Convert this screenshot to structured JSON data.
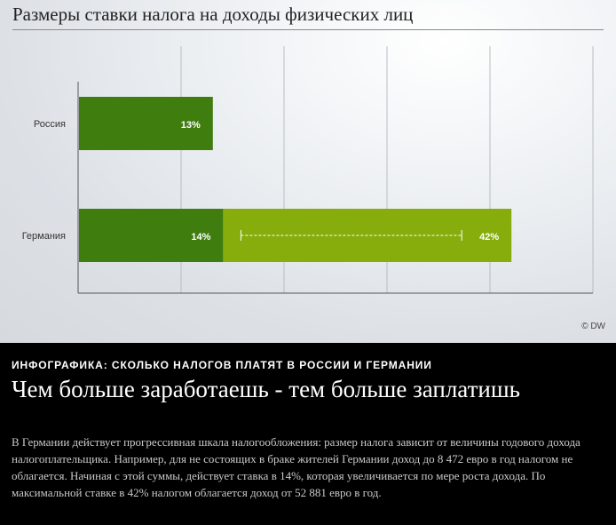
{
  "chart_data": {
    "type": "bar",
    "title": "Размеры ставки налога на доходы физических лиц",
    "orientation": "horizontal",
    "categories": [
      "Россия",
      "Германия"
    ],
    "xlim": [
      0,
      50
    ],
    "series": [
      {
        "values": [
          13,
          14
        ],
        "labels": [
          "13%",
          "14%"
        ],
        "color": "#3f7d0e"
      },
      {
        "values": [
          0,
          28
        ],
        "labels": [
          "",
          "42%"
        ],
        "color": "#86ad0b"
      }
    ],
    "annotation": "progressive range from 14% to 42% (dashed line)",
    "grid": "vertical",
    "credit": "© DW"
  },
  "caption": {
    "kicker": "ИНФОГРАФИКА: СКОЛЬКО НАЛОГОВ ПЛАТЯТ В РОССИИ И ГЕРМАНИИ",
    "headline": "Чем больше заработаешь - тем больше заплатишь",
    "body": "В Германии действует прогрессивная шкала налогообложения: размер налога зависит от величины годового дохода налогоплательщика. Например, для не состоящих в браке жителей Германии доход до 8 472 евро в год налогом не облагается. Начиная с этой суммы, действует ставка в 14%, которая увеличивается по мере роста дохода. По максимальной ставке в 42% налогом облагается доход от 52 881 евро в год."
  },
  "colors": {
    "flat_rate": "#3f7d0e",
    "progressive_rate": "#86ad0b",
    "caption_background": "#000000"
  }
}
